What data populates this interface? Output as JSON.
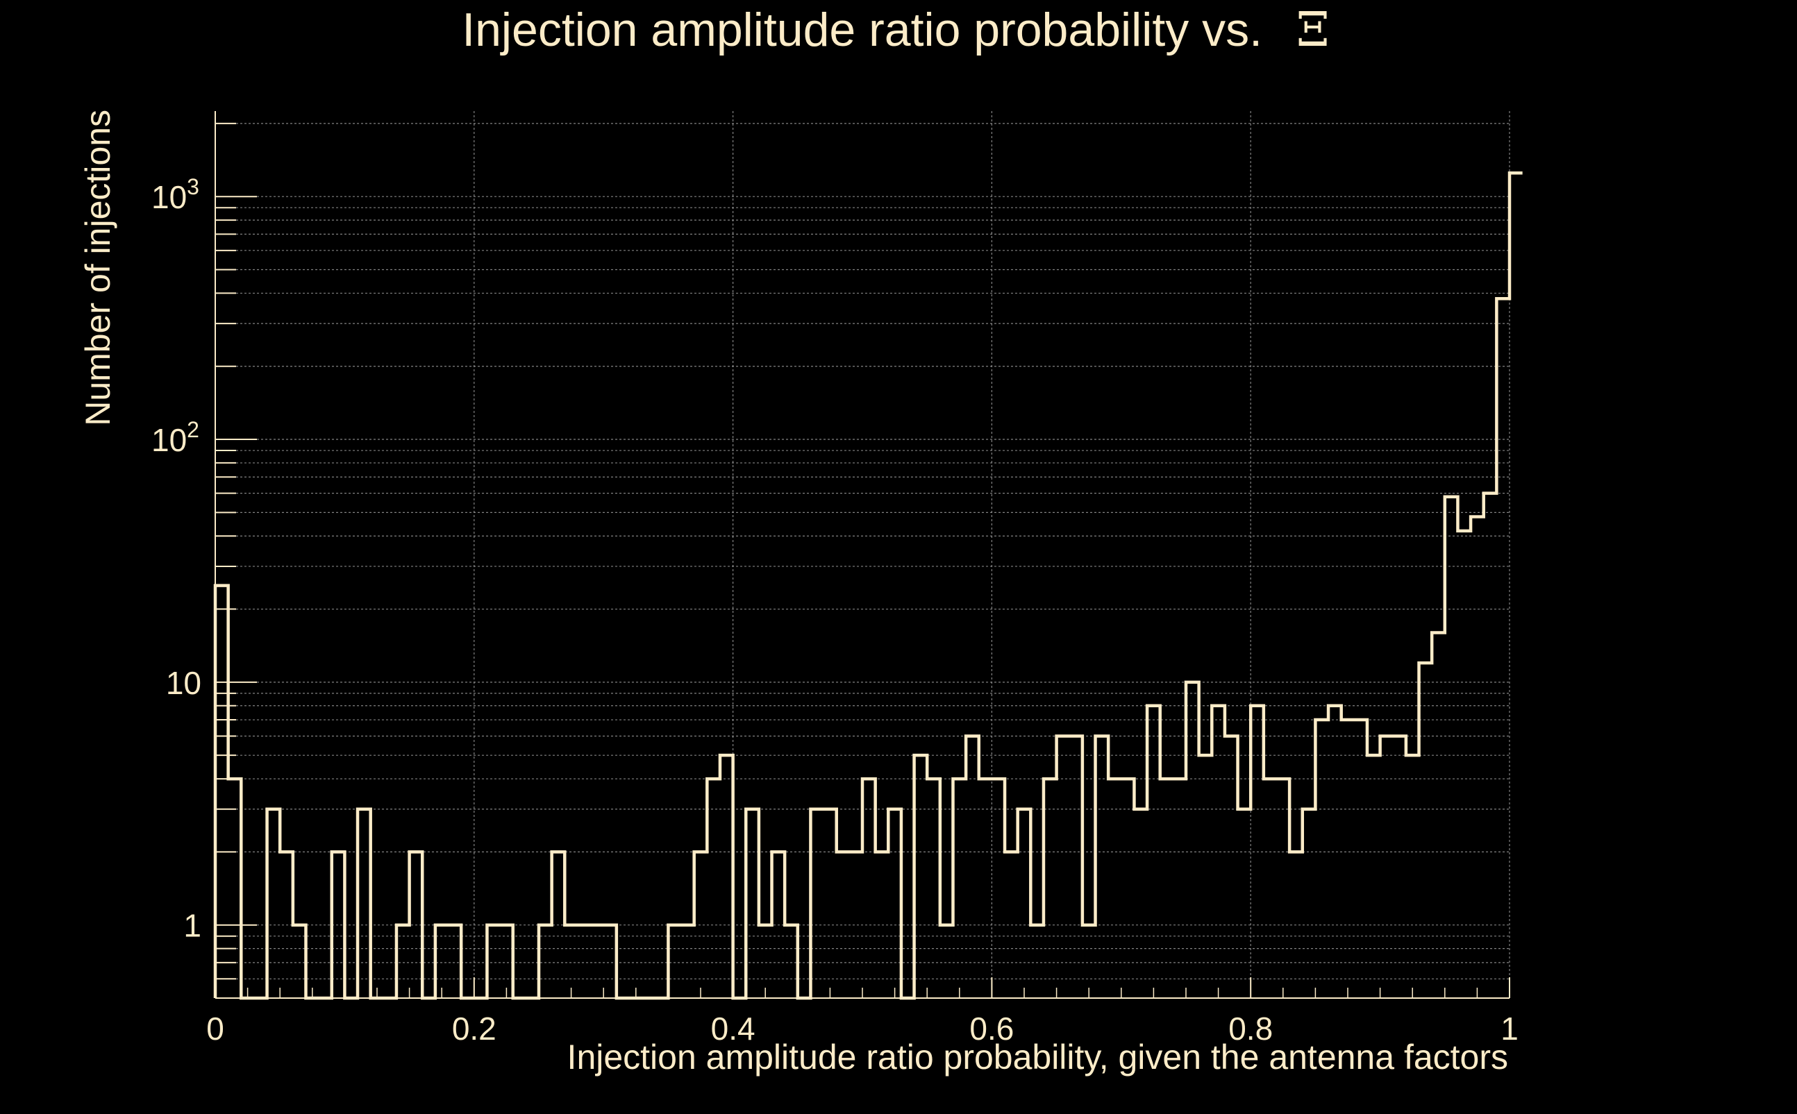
{
  "chart_data": {
    "type": "bar",
    "style": "step-histogram",
    "title_prefix": "Injection amplitude ratio probability vs.",
    "title_symbol": "Ξ",
    "xlabel": "Injection amplitude ratio probability, given the antenna factors",
    "ylabel": "Number of injections",
    "xlim": [
      0,
      1
    ],
    "ylim": [
      0.5,
      2250
    ],
    "yscale": "log",
    "grid": true,
    "xticks": [
      {
        "value": 0,
        "label": "0"
      },
      {
        "value": 0.2,
        "label": "0.2"
      },
      {
        "value": 0.4,
        "label": "0.4"
      },
      {
        "value": 0.6,
        "label": "0.6"
      },
      {
        "value": 0.8,
        "label": "0.8"
      },
      {
        "value": 1,
        "label": "1"
      }
    ],
    "yticks": [
      {
        "value": 1,
        "base": "1",
        "exp": ""
      },
      {
        "value": 10,
        "base": "10",
        "exp": ""
      },
      {
        "value": 100,
        "base": "10",
        "exp": "2"
      },
      {
        "value": 1000,
        "base": "10",
        "exp": "3"
      }
    ],
    "bin_width": 0.01,
    "bin_start": 0,
    "values": [
      25,
      4,
      0.5,
      0.5,
      3,
      2,
      1,
      0.5,
      0.5,
      2,
      0.5,
      3,
      0.5,
      0.5,
      1,
      2,
      0.5,
      1,
      1,
      0.5,
      0.5,
      1,
      1,
      0.5,
      0.5,
      1,
      2,
      1,
      1,
      1,
      1,
      0.5,
      0.5,
      0.5,
      0.5,
      1,
      1,
      2,
      4,
      5,
      0.5,
      3,
      1,
      2,
      1,
      0.5,
      3,
      3,
      2,
      2,
      4,
      2,
      3,
      0.5,
      5,
      4,
      1,
      4,
      6,
      4,
      4,
      2,
      3,
      1,
      4,
      6,
      6,
      1,
      6,
      4,
      4,
      3,
      8,
      4,
      4,
      10,
      5,
      8,
      6,
      3,
      8,
      4,
      4,
      2,
      3,
      7,
      8,
      7,
      7,
      5,
      6,
      6,
      5,
      12,
      16,
      58,
      42,
      48,
      60,
      380,
      1250
    ],
    "colors": {
      "background": "#000000",
      "foreground": "#fcecc8",
      "grid": "#9a9a9a"
    }
  }
}
